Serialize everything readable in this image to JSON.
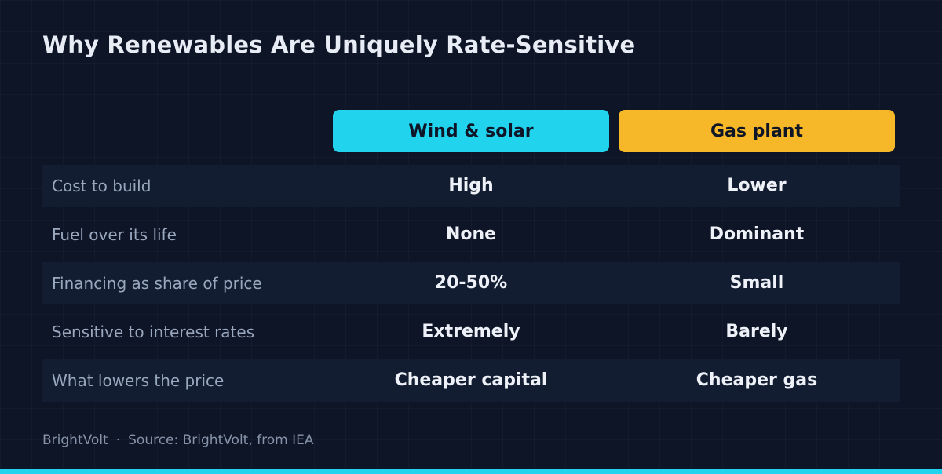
{
  "title": "Why Renewables Are Uniquely Rate-Sensitive",
  "colors": {
    "accent_cyan": "#22d3ee",
    "accent_amber": "#f6b828"
  },
  "footer": {
    "brand": "BrightVolt",
    "separator": "·",
    "source": "Source: BrightVolt, from IEA"
  },
  "chart_data": {
    "type": "table",
    "columns": [
      "Wind & solar",
      "Gas plant"
    ],
    "rows": [
      {
        "label": "Cost to build",
        "values": [
          "High",
          "Lower"
        ]
      },
      {
        "label": "Fuel over its life",
        "values": [
          "None",
          "Dominant"
        ]
      },
      {
        "label": "Financing as share of price",
        "values": [
          "20-50%",
          "Small"
        ]
      },
      {
        "label": "Sensitive to interest rates",
        "values": [
          "Extremely",
          "Barely"
        ]
      },
      {
        "label": "What lowers the price",
        "values": [
          "Cheaper capital",
          "Cheaper gas"
        ]
      }
    ]
  }
}
